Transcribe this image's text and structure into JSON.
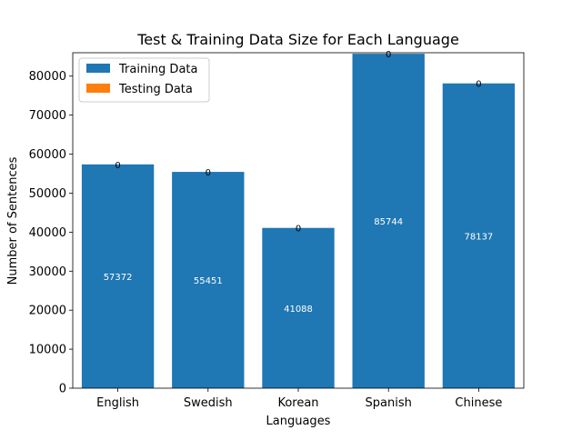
{
  "chart_data": {
    "type": "bar",
    "stacked": true,
    "title": "Test & Training Data Size for Each Language",
    "xlabel": "Languages",
    "ylabel": "Number of Sentences",
    "categories": [
      "English",
      "Swedish",
      "Korean",
      "Spanish",
      "Chinese"
    ],
    "series": [
      {
        "name": "Training Data",
        "color": "#1f77b4",
        "values": [
          57372,
          55451,
          41088,
          85744,
          78137
        ]
      },
      {
        "name": "Testing Data",
        "color": "#ff7f0e",
        "values": [
          0,
          0,
          0,
          0,
          0
        ]
      }
    ],
    "ylim": [
      0,
      86000
    ],
    "yticks": [
      0,
      10000,
      20000,
      30000,
      40000,
      50000,
      60000,
      70000,
      80000
    ],
    "ytick_labels": [
      "0",
      "10000",
      "20000",
      "30000",
      "40000",
      "50000",
      "60000",
      "70000",
      "80000"
    ],
    "legend": {
      "position": "upper-left",
      "entries": [
        "Training Data",
        "Testing Data"
      ]
    },
    "bar_labels": {
      "training": [
        "57372",
        "55451",
        "41088",
        "85744",
        "78137"
      ],
      "testing": [
        "0",
        "0",
        "0",
        "0",
        "0"
      ]
    },
    "grid": false
  }
}
